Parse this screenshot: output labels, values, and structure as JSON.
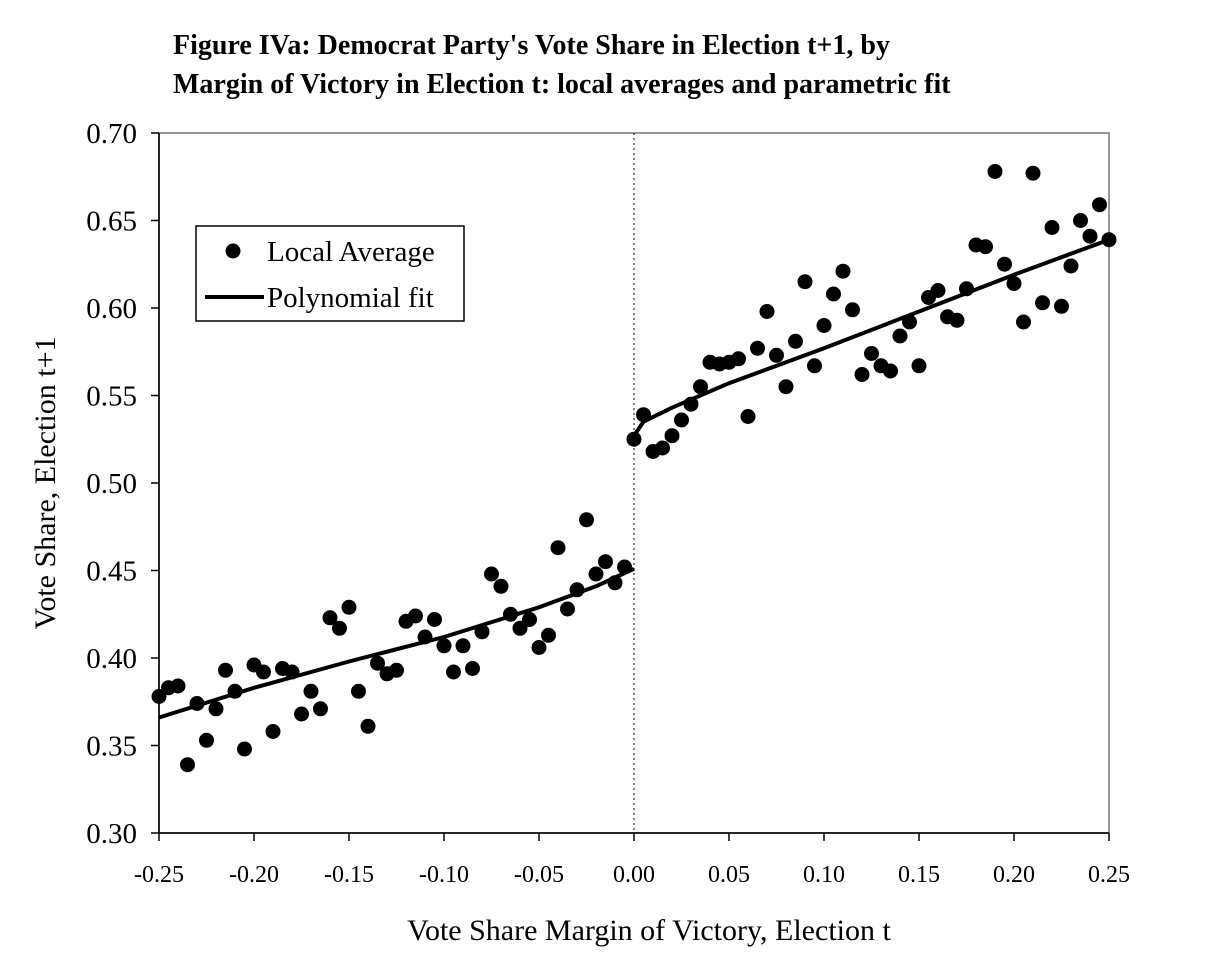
{
  "chart_data": {
    "type": "scatter",
    "title_lines": [
      "Figure IVa: Democrat Party's Vote Share in Election t+1, by",
      "Margin of Victory in Election t: local averages and parametric fit"
    ],
    "xlabel": "Vote Share Margin of Victory, Election t",
    "ylabel": "Vote Share, Election t+1",
    "xlim": [
      -0.25,
      0.25
    ],
    "ylim": [
      0.3,
      0.7
    ],
    "x_ticks": [
      -0.25,
      -0.2,
      -0.15,
      -0.1,
      -0.05,
      0.0,
      0.05,
      0.1,
      0.15,
      0.2,
      0.25
    ],
    "x_tick_labels": [
      "-0.25",
      "-0.20",
      "-0.15",
      "-0.10",
      "-0.05",
      "0.00",
      "0.05",
      "0.10",
      "0.15",
      "0.20",
      "0.25"
    ],
    "y_ticks": [
      0.3,
      0.35,
      0.4,
      0.45,
      0.5,
      0.55,
      0.6,
      0.65,
      0.7
    ],
    "y_tick_labels": [
      "0.30",
      "0.35",
      "0.40",
      "0.45",
      "0.50",
      "0.55",
      "0.60",
      "0.65",
      "0.70"
    ],
    "grid": false,
    "legend": {
      "position": "top-left",
      "entries": [
        "Local Average",
        "Polynomial fit"
      ]
    },
    "reference_line": {
      "x": 0.0,
      "style": "dotted"
    },
    "colors": {
      "marker": "#000000",
      "line": "#000000",
      "frame": "#999999"
    },
    "series": [
      {
        "name": "Local Average",
        "kind": "points",
        "points": [
          [
            -0.25,
            0.378
          ],
          [
            -0.245,
            0.383
          ],
          [
            -0.24,
            0.384
          ],
          [
            -0.235,
            0.339
          ],
          [
            -0.23,
            0.374
          ],
          [
            -0.225,
            0.353
          ],
          [
            -0.22,
            0.371
          ],
          [
            -0.215,
            0.393
          ],
          [
            -0.21,
            0.381
          ],
          [
            -0.205,
            0.348
          ],
          [
            -0.2,
            0.396
          ],
          [
            -0.195,
            0.392
          ],
          [
            -0.19,
            0.358
          ],
          [
            -0.185,
            0.394
          ],
          [
            -0.18,
            0.392
          ],
          [
            -0.175,
            0.368
          ],
          [
            -0.17,
            0.381
          ],
          [
            -0.165,
            0.371
          ],
          [
            -0.16,
            0.423
          ],
          [
            -0.155,
            0.417
          ],
          [
            -0.15,
            0.429
          ],
          [
            -0.145,
            0.381
          ],
          [
            -0.14,
            0.361
          ],
          [
            -0.135,
            0.397
          ],
          [
            -0.13,
            0.391
          ],
          [
            -0.125,
            0.393
          ],
          [
            -0.12,
            0.421
          ],
          [
            -0.115,
            0.424
          ],
          [
            -0.11,
            0.412
          ],
          [
            -0.105,
            0.422
          ],
          [
            -0.1,
            0.407
          ],
          [
            -0.095,
            0.392
          ],
          [
            -0.09,
            0.407
          ],
          [
            -0.085,
            0.394
          ],
          [
            -0.08,
            0.415
          ],
          [
            -0.075,
            0.448
          ],
          [
            -0.07,
            0.441
          ],
          [
            -0.065,
            0.425
          ],
          [
            -0.06,
            0.417
          ],
          [
            -0.055,
            0.422
          ],
          [
            -0.05,
            0.406
          ],
          [
            -0.045,
            0.413
          ],
          [
            -0.04,
            0.463
          ],
          [
            -0.035,
            0.428
          ],
          [
            -0.03,
            0.439
          ],
          [
            -0.025,
            0.479
          ],
          [
            -0.02,
            0.448
          ],
          [
            -0.015,
            0.455
          ],
          [
            -0.01,
            0.443
          ],
          [
            -0.005,
            0.452
          ],
          [
            0.0,
            0.525
          ],
          [
            0.005,
            0.539
          ],
          [
            0.01,
            0.518
          ],
          [
            0.015,
            0.52
          ],
          [
            0.02,
            0.527
          ],
          [
            0.025,
            0.536
          ],
          [
            0.03,
            0.545
          ],
          [
            0.035,
            0.555
          ],
          [
            0.04,
            0.569
          ],
          [
            0.045,
            0.568
          ],
          [
            0.05,
            0.569
          ],
          [
            0.055,
            0.571
          ],
          [
            0.06,
            0.538
          ],
          [
            0.065,
            0.577
          ],
          [
            0.07,
            0.598
          ],
          [
            0.075,
            0.573
          ],
          [
            0.08,
            0.555
          ],
          [
            0.085,
            0.581
          ],
          [
            0.09,
            0.615
          ],
          [
            0.095,
            0.567
          ],
          [
            0.1,
            0.59
          ],
          [
            0.105,
            0.608
          ],
          [
            0.11,
            0.621
          ],
          [
            0.115,
            0.599
          ],
          [
            0.12,
            0.562
          ],
          [
            0.125,
            0.574
          ],
          [
            0.13,
            0.567
          ],
          [
            0.135,
            0.564
          ],
          [
            0.14,
            0.584
          ],
          [
            0.145,
            0.592
          ],
          [
            0.15,
            0.567
          ],
          [
            0.155,
            0.606
          ],
          [
            0.16,
            0.61
          ],
          [
            0.165,
            0.595
          ],
          [
            0.17,
            0.593
          ],
          [
            0.175,
            0.611
          ],
          [
            0.18,
            0.636
          ],
          [
            0.185,
            0.635
          ],
          [
            0.19,
            0.678
          ],
          [
            0.195,
            0.625
          ],
          [
            0.2,
            0.614
          ],
          [
            0.205,
            0.592
          ],
          [
            0.21,
            0.677
          ],
          [
            0.215,
            0.603
          ],
          [
            0.22,
            0.646
          ],
          [
            0.225,
            0.601
          ],
          [
            0.23,
            0.624
          ],
          [
            0.235,
            0.65
          ],
          [
            0.24,
            0.641
          ],
          [
            0.245,
            0.659
          ],
          [
            0.25,
            0.639
          ]
        ]
      },
      {
        "name": "Polynomial fit",
        "kind": "line",
        "segments": [
          [
            [
              -0.25,
              0.366
            ],
            [
              -0.2,
              0.383
            ],
            [
              -0.15,
              0.398
            ],
            [
              -0.1,
              0.412
            ],
            [
              -0.05,
              0.429
            ],
            [
              -0.02,
              0.441
            ],
            [
              -0.01,
              0.446
            ],
            [
              0.0,
              0.451
            ]
          ],
          [
            [
              0.0,
              0.527
            ],
            [
              0.005,
              0.535
            ],
            [
              0.02,
              0.543
            ],
            [
              0.05,
              0.557
            ],
            [
              0.1,
              0.577
            ],
            [
              0.15,
              0.598
            ],
            [
              0.2,
              0.619
            ],
            [
              0.25,
              0.639
            ]
          ]
        ]
      }
    ]
  }
}
